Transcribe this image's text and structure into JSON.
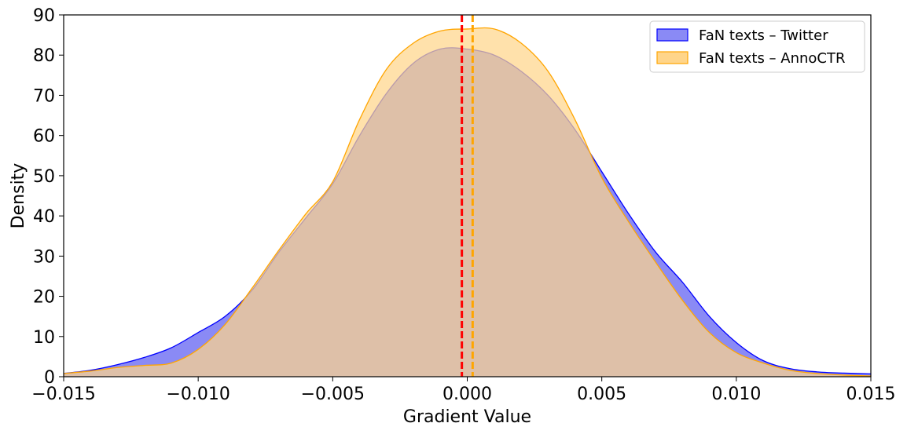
{
  "chart_data": {
    "type": "area",
    "xlabel": "Gradient Value",
    "ylabel": "Density",
    "xlim": [
      -0.015,
      0.015
    ],
    "ylim": [
      0,
      90
    ],
    "xticks": [
      -0.015,
      -0.01,
      -0.005,
      0.0,
      0.005,
      0.01,
      0.015
    ],
    "xtick_labels": [
      "−0.015",
      "−0.010",
      "−0.005",
      "0.000",
      "0.005",
      "0.010",
      "0.015"
    ],
    "yticks": [
      0,
      10,
      20,
      30,
      40,
      50,
      60,
      70,
      80,
      90
    ],
    "ytick_labels": [
      "0",
      "10",
      "20",
      "30",
      "40",
      "50",
      "60",
      "70",
      "80",
      "90"
    ],
    "grid": false,
    "legend_position": "top-right",
    "series": [
      {
        "name": "FaN texts – Twitter",
        "fill": "#8a8af5",
        "edge": "#0000ff",
        "x": [
          -0.015,
          -0.014,
          -0.013,
          -0.012,
          -0.011,
          -0.01,
          -0.009,
          -0.008,
          -0.007,
          -0.006,
          -0.005,
          -0.004,
          -0.003,
          -0.002,
          -0.001,
          0.0,
          0.001,
          0.002,
          0.003,
          0.004,
          0.005,
          0.006,
          0.007,
          0.008,
          0.009,
          0.01,
          0.011,
          0.012,
          0.013,
          0.014,
          0.015
        ],
        "y": [
          0.8,
          1.6,
          3.0,
          4.8,
          7.2,
          11.0,
          15.0,
          21.5,
          31.0,
          39.5,
          48.0,
          60.0,
          70.5,
          78.0,
          81.5,
          81.5,
          80.0,
          76.0,
          70.0,
          61.5,
          51.0,
          40.5,
          31.0,
          23.5,
          15.0,
          8.5,
          4.0,
          2.0,
          1.2,
          0.9,
          0.7
        ]
      },
      {
        "name": "FaN texts – AnnoCTR",
        "fill": "#ffd58a",
        "edge": "#ffa500",
        "x": [
          -0.015,
          -0.014,
          -0.013,
          -0.012,
          -0.011,
          -0.01,
          -0.009,
          -0.008,
          -0.007,
          -0.006,
          -0.005,
          -0.004,
          -0.003,
          -0.002,
          -0.001,
          0.0,
          0.001,
          0.002,
          0.003,
          0.004,
          0.005,
          0.006,
          0.007,
          0.008,
          0.009,
          0.01,
          0.011,
          0.012,
          0.013,
          0.014,
          0.015
        ],
        "y": [
          0.8,
          1.4,
          2.3,
          2.8,
          3.4,
          6.8,
          13.0,
          22.0,
          31.5,
          40.5,
          48.5,
          64.0,
          76.5,
          83.0,
          86.0,
          86.5,
          86.5,
          83.0,
          76.0,
          64.0,
          49.5,
          38.5,
          28.5,
          19.0,
          11.0,
          6.0,
          3.4,
          1.6,
          0.8,
          0.4,
          0.2
        ]
      }
    ],
    "vlines": [
      {
        "x": -0.0002,
        "color": "#ff0000",
        "style": "dashed"
      },
      {
        "x": 0.0002,
        "color": "#ffa500",
        "style": "dashed"
      }
    ],
    "overlap_color": "#bd978c"
  }
}
